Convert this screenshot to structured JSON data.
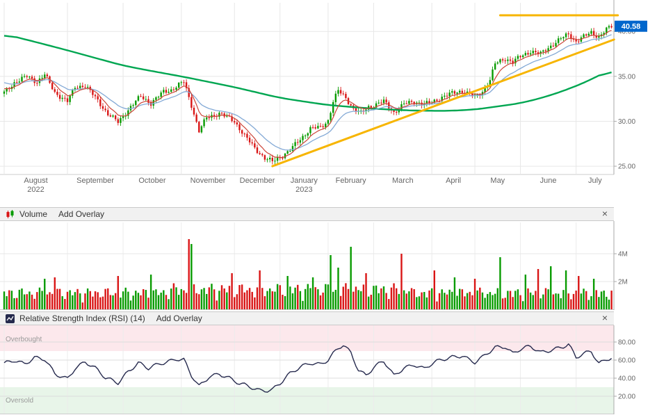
{
  "panels": {
    "price": {
      "y_tick_labels": [
        "40.00",
        "35.00",
        "30.00",
        "25.00"
      ],
      "last_price_label": "40.58"
    },
    "volume": {
      "header": {
        "title": "Volume",
        "add_overlay": "Add Overlay",
        "close": "×"
      },
      "y_tick_labels": [
        "4M",
        "2M"
      ]
    },
    "rsi": {
      "header": {
        "title": "Relative Strength Index (RSI) (14)",
        "add_overlay": "Add Overlay",
        "close": "×"
      },
      "y_tick_labels": [
        "80.00",
        "60.00",
        "40.00",
        "20.00"
      ],
      "overbought_label": "Overbought",
      "oversold_label": "Oversold"
    }
  },
  "colors": {
    "candle_up": "#089b00",
    "candle_down": "#d91515",
    "volume_up": "#089b00",
    "volume_down": "#d91515",
    "ma_green": "#00a651",
    "ma_blue": "#84aad6",
    "ma_red": "#cc4437",
    "trendline": "#f7b500",
    "rsi_line": "#262a4e",
    "overbought_bg": "#fce8ec",
    "oversold_bg": "#e8f5e9",
    "band_label": "#999999",
    "grid": "#e7e7e7",
    "axis_line": "#aaaaaa",
    "axis_text": "#666666",
    "last_price_bg": "#0066cc",
    "last_price_text": "#ffffff"
  },
  "chart_data": [
    {
      "id": "price",
      "type": "candlestick",
      "title": "",
      "bars_total": 241,
      "ylim": [
        24.0,
        43.5
      ],
      "y_ticks": [
        40,
        35,
        30,
        25
      ],
      "last_price": 40.58,
      "x_axis": {
        "months": [
          {
            "label": "August",
            "year": "2022",
            "start_index": 0
          },
          {
            "label": "September",
            "start_index": 25
          },
          {
            "label": "October",
            "start_index": 47
          },
          {
            "label": "November",
            "start_index": 70
          },
          {
            "label": "December",
            "start_index": 91
          },
          {
            "label": "January",
            "year": "2023",
            "start_index": 109
          },
          {
            "label": "February",
            "start_index": 128
          },
          {
            "label": "March",
            "start_index": 146
          },
          {
            "label": "April",
            "start_index": 169
          },
          {
            "label": "May",
            "start_index": 186
          },
          {
            "label": "June",
            "start_index": 204
          },
          {
            "label": "July",
            "start_index": 226
          }
        ]
      },
      "close_anchors": [
        [
          0,
          33.2
        ],
        [
          4,
          34.3
        ],
        [
          9,
          35.0
        ],
        [
          13,
          34.4
        ],
        [
          16,
          35.2
        ],
        [
          20,
          33.2
        ],
        [
          25,
          32.2
        ],
        [
          28,
          33.8
        ],
        [
          32,
          34.0
        ],
        [
          37,
          32.3
        ],
        [
          41,
          30.8
        ],
        [
          45,
          29.9
        ],
        [
          50,
          31.6
        ],
        [
          54,
          32.8
        ],
        [
          58,
          32.0
        ],
        [
          63,
          33.3
        ],
        [
          66,
          33.5
        ],
        [
          71,
          34.4
        ],
        [
          74,
          31.8
        ],
        [
          77,
          28.9
        ],
        [
          80,
          30.4
        ],
        [
          85,
          30.9
        ],
        [
          89,
          30.3
        ],
        [
          91,
          30.0
        ],
        [
          95,
          28.4
        ],
        [
          99,
          27.0
        ],
        [
          103,
          25.9
        ],
        [
          106,
          25.5
        ],
        [
          109,
          26.0
        ],
        [
          113,
          26.8
        ],
        [
          117,
          28.0
        ],
        [
          121,
          29.2
        ],
        [
          125,
          29.3
        ],
        [
          128,
          30.1
        ],
        [
          130,
          32.2
        ],
        [
          132,
          33.4
        ],
        [
          135,
          32.6
        ],
        [
          138,
          31.4
        ],
        [
          141,
          30.9
        ],
        [
          144,
          31.6
        ],
        [
          146,
          31.8
        ],
        [
          150,
          32.2
        ],
        [
          154,
          31.0
        ],
        [
          158,
          31.9
        ],
        [
          162,
          32.2
        ],
        [
          166,
          31.9
        ],
        [
          169,
          32.1
        ],
        [
          173,
          32.7
        ],
        [
          177,
          33.1
        ],
        [
          181,
          33.4
        ],
        [
          184,
          33.0
        ],
        [
          186,
          32.7
        ],
        [
          189,
          33.3
        ],
        [
          192,
          34.6
        ],
        [
          194,
          36.4
        ],
        [
          198,
          37.0
        ],
        [
          201,
          36.6
        ],
        [
          204,
          37.2
        ],
        [
          208,
          37.8
        ],
        [
          212,
          37.5
        ],
        [
          216,
          38.4
        ],
        [
          220,
          39.2
        ],
        [
          223,
          39.7
        ],
        [
          226,
          38.9
        ],
        [
          229,
          39.4
        ],
        [
          232,
          39.9
        ],
        [
          235,
          39.4
        ],
        [
          238,
          40.2
        ],
        [
          240,
          40.58
        ]
      ],
      "overlays": {
        "ma_slow_green_anchors": [
          [
            0,
            39.7
          ],
          [
            10,
            39.0
          ],
          [
            25,
            37.9
          ],
          [
            47,
            36.2
          ],
          [
            60,
            35.5
          ],
          [
            70,
            35.0
          ],
          [
            91,
            33.8
          ],
          [
            109,
            32.6
          ],
          [
            128,
            31.8
          ],
          [
            146,
            31.4
          ],
          [
            160,
            31.2
          ],
          [
            175,
            31.15
          ],
          [
            186,
            31.3
          ],
          [
            204,
            32.0
          ],
          [
            215,
            32.8
          ],
          [
            226,
            33.9
          ],
          [
            233,
            34.8
          ],
          [
            240,
            35.8
          ]
        ],
        "ema_fast_red_period": 7,
        "ema_mid_blue_period": 18,
        "trendlines": [
          {
            "name": "rising-support",
            "from_index": 106,
            "from_price": 25.0,
            "to_index": 241,
            "to_price": 39.1
          },
          {
            "name": "horizontal-resistance",
            "from_index": 196,
            "from_price": 41.8,
            "to_index": 242.5,
            "to_price": 41.8
          }
        ]
      }
    },
    {
      "id": "volume",
      "type": "bar",
      "units": "millions",
      "ylim_millions": [
        0,
        6.35
      ],
      "y_ticks_millions": [
        4,
        2
      ],
      "base_range_millions": [
        0.45,
        2.1
      ],
      "spikes": [
        [
          16,
          2.2,
          "up"
        ],
        [
          20,
          2.3,
          "down"
        ],
        [
          45,
          2.4,
          "down"
        ],
        [
          58,
          2.5,
          "up"
        ],
        [
          73,
          5.05,
          "down"
        ],
        [
          74,
          4.7,
          "up"
        ],
        [
          90,
          2.6,
          "down"
        ],
        [
          101,
          2.8,
          "down"
        ],
        [
          112,
          2.4,
          "up"
        ],
        [
          122,
          2.3,
          "up"
        ],
        [
          129,
          3.9,
          "up"
        ],
        [
          132,
          3.0,
          "up"
        ],
        [
          137,
          4.5,
          "up"
        ],
        [
          143,
          2.6,
          "down"
        ],
        [
          157,
          4.0,
          "down"
        ],
        [
          170,
          2.8,
          "down"
        ],
        [
          178,
          2.3,
          "up"
        ],
        [
          186,
          2.2,
          "down"
        ],
        [
          196,
          3.75,
          "up"
        ],
        [
          206,
          2.5,
          "up"
        ],
        [
          211,
          2.9,
          "down"
        ],
        [
          216,
          3.1,
          "up"
        ],
        [
          222,
          2.8,
          "up"
        ],
        [
          227,
          2.4,
          "down"
        ],
        [
          233,
          2.2,
          "up"
        ]
      ]
    },
    {
      "id": "rsi",
      "type": "line",
      "period": 14,
      "ylim": [
        0,
        100
      ],
      "y_ticks": [
        80,
        60,
        40,
        20
      ],
      "bands": {
        "overbought_above": 70,
        "oversold_below": 30
      },
      "band_labels": {
        "overbought": "Overbought",
        "oversold": "Oversold"
      },
      "anchors": [
        [
          0,
          55
        ],
        [
          4,
          60
        ],
        [
          8,
          57
        ],
        [
          12,
          63
        ],
        [
          16,
          60
        ],
        [
          20,
          44
        ],
        [
          25,
          40
        ],
        [
          28,
          52
        ],
        [
          32,
          58
        ],
        [
          36,
          50
        ],
        [
          40,
          40
        ],
        [
          45,
          36
        ],
        [
          49,
          48
        ],
        [
          53,
          56
        ],
        [
          57,
          50
        ],
        [
          62,
          57
        ],
        [
          68,
          62
        ],
        [
          71,
          60
        ],
        [
          74,
          42
        ],
        [
          77,
          30
        ],
        [
          81,
          42
        ],
        [
          85,
          46
        ],
        [
          89,
          40
        ],
        [
          93,
          33
        ],
        [
          97,
          30
        ],
        [
          101,
          27
        ],
        [
          106,
          28
        ],
        [
          109,
          34
        ],
        [
          113,
          44
        ],
        [
          117,
          52
        ],
        [
          121,
          58
        ],
        [
          125,
          56
        ],
        [
          128,
          60
        ],
        [
          132,
          72
        ],
        [
          134,
          76
        ],
        [
          137,
          68
        ],
        [
          140,
          50
        ],
        [
          143,
          44
        ],
        [
          146,
          52
        ],
        [
          150,
          58
        ],
        [
          154,
          42
        ],
        [
          158,
          52
        ],
        [
          162,
          56
        ],
        [
          166,
          50
        ],
        [
          169,
          55
        ],
        [
          173,
          60
        ],
        [
          177,
          64
        ],
        [
          181,
          66
        ],
        [
          184,
          60
        ],
        [
          186,
          57
        ],
        [
          189,
          62
        ],
        [
          194,
          74
        ],
        [
          198,
          76
        ],
        [
          201,
          68
        ],
        [
          204,
          72
        ],
        [
          208,
          74
        ],
        [
          212,
          68
        ],
        [
          216,
          72
        ],
        [
          220,
          75
        ],
        [
          223,
          77
        ],
        [
          226,
          62
        ],
        [
          229,
          66
        ],
        [
          232,
          70
        ],
        [
          235,
          57
        ],
        [
          238,
          62
        ],
        [
          240,
          63
        ]
      ]
    }
  ]
}
